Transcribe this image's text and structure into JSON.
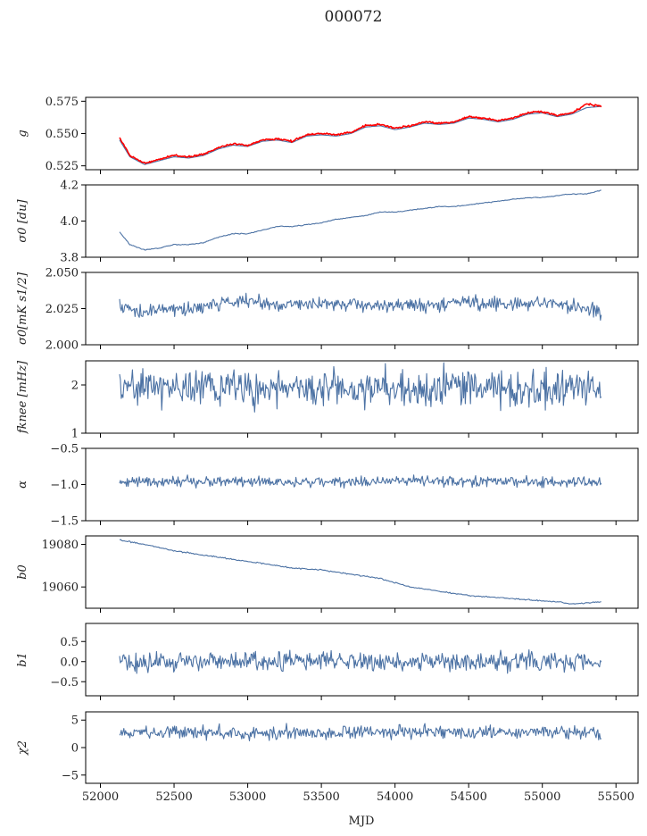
{
  "figure": {
    "title": "000072",
    "xlabel": "MJD"
  },
  "colors": {
    "series": "#4c72a4",
    "fit": "#ff0000",
    "axes": "#000000"
  },
  "chart_data": [
    {
      "type": "line",
      "id": "g",
      "ylabel": "g",
      "xlim": [
        51900,
        55650
      ],
      "ylim": [
        0.522,
        0.578
      ],
      "yticks": [
        0.525,
        0.55,
        0.575
      ],
      "ytick_labels": [
        "0.525",
        "0.550",
        "0.575"
      ],
      "series": [
        {
          "style": "smooth",
          "color_key": "series",
          "x": [
            52130,
            52200,
            52300,
            52400,
            52500,
            52600,
            52700,
            52800,
            52900,
            53000,
            53100,
            53200,
            53300,
            53400,
            53500,
            53600,
            53700,
            53800,
            53900,
            54000,
            54100,
            54200,
            54300,
            54400,
            54500,
            54600,
            54700,
            54800,
            54900,
            55000,
            55100,
            55200,
            55300,
            55400
          ],
          "values": [
            0.545,
            0.532,
            0.526,
            0.529,
            0.532,
            0.531,
            0.533,
            0.538,
            0.541,
            0.54,
            0.544,
            0.545,
            0.543,
            0.548,
            0.549,
            0.548,
            0.55,
            0.555,
            0.556,
            0.553,
            0.555,
            0.558,
            0.557,
            0.558,
            0.562,
            0.561,
            0.559,
            0.561,
            0.565,
            0.566,
            0.563,
            0.565,
            0.57,
            0.571
          ]
        },
        {
          "style": "noisy",
          "color_key": "fit",
          "x": [
            52130,
            52200,
            52300,
            52400,
            52500,
            52600,
            52700,
            52800,
            52900,
            53000,
            53100,
            53200,
            53300,
            53400,
            53500,
            53600,
            53700,
            53800,
            53900,
            54000,
            54100,
            54200,
            54300,
            54400,
            54500,
            54600,
            54700,
            54800,
            54900,
            55000,
            55100,
            55200,
            55300,
            55400
          ],
          "values": [
            0.547,
            0.533,
            0.527,
            0.53,
            0.533,
            0.532,
            0.534,
            0.539,
            0.542,
            0.541,
            0.545,
            0.546,
            0.544,
            0.549,
            0.55,
            0.549,
            0.551,
            0.556,
            0.557,
            0.554,
            0.556,
            0.559,
            0.558,
            0.559,
            0.563,
            0.562,
            0.56,
            0.562,
            0.566,
            0.567,
            0.564,
            0.566,
            0.573,
            0.571
          ],
          "amp": 0.0006
        }
      ]
    },
    {
      "type": "line",
      "id": "sigma0",
      "ylabel": "σ0 [du]",
      "xlim": [
        51900,
        55650
      ],
      "ylim": [
        3.8,
        4.2
      ],
      "yticks": [
        3.8,
        4.0,
        4.2
      ],
      "ytick_labels": [
        "3.8",
        "4.0",
        "4.2"
      ],
      "series": [
        {
          "style": "smooth",
          "color_key": "series",
          "x": [
            52130,
            52200,
            52300,
            52400,
            52500,
            52600,
            52700,
            52800,
            52900,
            53000,
            53100,
            53200,
            53300,
            53400,
            53500,
            53600,
            53700,
            53800,
            53900,
            54000,
            54100,
            54200,
            54300,
            54400,
            54500,
            54600,
            54700,
            54800,
            54900,
            55000,
            55100,
            55200,
            55300,
            55400
          ],
          "values": [
            3.94,
            3.87,
            3.84,
            3.85,
            3.87,
            3.87,
            3.88,
            3.91,
            3.93,
            3.93,
            3.95,
            3.97,
            3.97,
            3.98,
            3.99,
            4.01,
            4.02,
            4.03,
            4.05,
            4.05,
            4.06,
            4.07,
            4.08,
            4.08,
            4.09,
            4.1,
            4.11,
            4.12,
            4.13,
            4.13,
            4.14,
            4.15,
            4.15,
            4.17
          ],
          "amp": 0.002
        }
      ]
    },
    {
      "type": "line",
      "id": "sigma0-noise",
      "ylabel": "σ0[mK s1/2]",
      "xlim": [
        51900,
        55650
      ],
      "ylim": [
        2.0,
        2.05
      ],
      "yticks": [
        2.0,
        2.025,
        2.05
      ],
      "ytick_labels": [
        "2.000",
        "2.025",
        "2.050"
      ],
      "series": [
        {
          "style": "noisy",
          "color_key": "series",
          "x": [
            52130,
            52250,
            52500,
            52750,
            53000,
            53250,
            53500,
            53750,
            54000,
            54250,
            54500,
            54750,
            55000,
            55250,
            55400
          ],
          "values": [
            2.028,
            2.022,
            2.024,
            2.027,
            2.03,
            2.028,
            2.029,
            2.028,
            2.027,
            2.027,
            2.03,
            2.027,
            2.029,
            2.026,
            2.023
          ],
          "amp": 0.004
        }
      ]
    },
    {
      "type": "line",
      "id": "fknee",
      "ylabel": "fknee [mHz]",
      "xlim": [
        51900,
        55650
      ],
      "ylim": [
        1.0,
        2.5
      ],
      "yticks": [
        1,
        2
      ],
      "ytick_labels": [
        "1",
        "2"
      ],
      "series": [
        {
          "style": "noisy",
          "color_key": "series",
          "x": [
            52130,
            55400
          ],
          "values": [
            1.95,
            1.9
          ],
          "amp": 0.32,
          "clip": [
            1.3,
            2.5
          ]
        }
      ]
    },
    {
      "type": "line",
      "id": "alpha",
      "ylabel": "α",
      "xlim": [
        51900,
        55650
      ],
      "ylim": [
        -1.5,
        -0.5
      ],
      "yticks": [
        -1.5,
        -1.0,
        -0.5
      ],
      "ytick_labels": [
        "−1.5",
        "−1.0",
        "−0.5"
      ],
      "series": [
        {
          "style": "noisy",
          "color_key": "series",
          "x": [
            52130,
            55400
          ],
          "values": [
            -0.96,
            -0.96
          ],
          "amp": 0.06
        }
      ]
    },
    {
      "type": "line",
      "id": "b0",
      "ylabel": "b0",
      "xlim": [
        51900,
        55650
      ],
      "ylim": [
        19050,
        19084
      ],
      "yticks": [
        19060,
        19080
      ],
      "ytick_labels": [
        "19060",
        "19080"
      ],
      "series": [
        {
          "style": "smooth",
          "color_key": "series",
          "x": [
            52130,
            52300,
            52500,
            52700,
            52900,
            53100,
            53300,
            53500,
            53700,
            53900,
            54100,
            54300,
            54500,
            54700,
            54900,
            55100,
            55200,
            55300,
            55400
          ],
          "values": [
            19082,
            19080,
            19077,
            19075,
            19073,
            19071,
            19069,
            19068,
            19066,
            19064,
            19060,
            19058,
            19056,
            19055,
            19054,
            19053,
            19052,
            19052.5,
            19053
          ],
          "amp": 0.25
        }
      ]
    },
    {
      "type": "line",
      "id": "b1",
      "ylabel": "b1",
      "xlim": [
        51900,
        55650
      ],
      "ylim": [
        -0.85,
        0.95
      ],
      "yticks": [
        -0.5,
        0.0,
        0.5
      ],
      "ytick_labels": [
        "−0.5",
        "0.0",
        "0.5"
      ],
      "series": [
        {
          "style": "noisy",
          "color_key": "series",
          "x": [
            52130,
            55400
          ],
          "values": [
            0.0,
            0.0
          ],
          "amp": 0.2,
          "clip": [
            -0.75,
            0.8
          ]
        }
      ]
    },
    {
      "type": "line",
      "id": "chi2",
      "ylabel": "χ2",
      "xlim": [
        51900,
        55650
      ],
      "ylim": [
        -6.5,
        6.5
      ],
      "yticks": [
        -5,
        0,
        5
      ],
      "ytick_labels": [
        "−5",
        "0",
        "5"
      ],
      "xticks": [
        52000,
        52500,
        53000,
        53500,
        54000,
        54500,
        55000,
        55500
      ],
      "xtick_labels": [
        "52000",
        "52500",
        "53000",
        "53500",
        "54000",
        "54500",
        "55000",
        "55500"
      ],
      "series": [
        {
          "style": "noisy",
          "color_key": "series",
          "x": [
            52130,
            55400
          ],
          "values": [
            2.8,
            2.8
          ],
          "amp": 1.0,
          "clip": [
            0.0,
            6.0
          ]
        }
      ]
    }
  ]
}
